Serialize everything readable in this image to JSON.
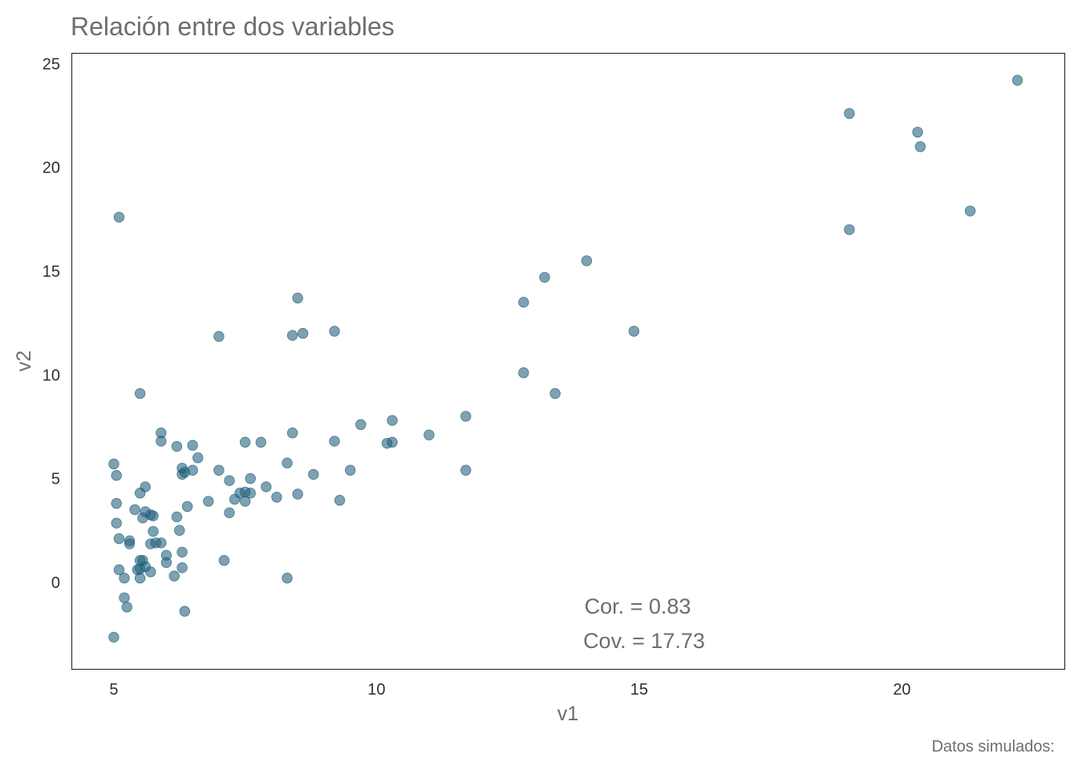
{
  "chart_data": {
    "type": "scatter",
    "title": "Relación entre dos variables",
    "xlabel": "v1",
    "ylabel": "v2",
    "caption": "Datos simulados:",
    "xlim": [
      4.2,
      23.1
    ],
    "ylim": [
      -4.2,
      25.5
    ],
    "xticks": [
      5,
      10,
      15,
      20
    ],
    "yticks": [
      0,
      5,
      10,
      15,
      20,
      25
    ],
    "grid": false,
    "point_color": "#1f5f7a",
    "annotations": {
      "cor": "Cor. =  0.83",
      "cov": "Cov. =  17.73"
    },
    "points": [
      {
        "x": 22.2,
        "y": 24.2
      },
      {
        "x": 19.0,
        "y": 22.6
      },
      {
        "x": 20.3,
        "y": 21.7
      },
      {
        "x": 20.35,
        "y": 21.0
      },
      {
        "x": 21.3,
        "y": 17.9
      },
      {
        "x": 19.0,
        "y": 17.0
      },
      {
        "x": 5.1,
        "y": 17.6
      },
      {
        "x": 14.0,
        "y": 15.5
      },
      {
        "x": 13.2,
        "y": 14.7
      },
      {
        "x": 12.8,
        "y": 13.5
      },
      {
        "x": 8.5,
        "y": 13.7
      },
      {
        "x": 14.9,
        "y": 12.1
      },
      {
        "x": 9.2,
        "y": 12.1
      },
      {
        "x": 8.6,
        "y": 12.0
      },
      {
        "x": 8.4,
        "y": 11.9
      },
      {
        "x": 7.0,
        "y": 11.85
      },
      {
        "x": 12.8,
        "y": 10.1
      },
      {
        "x": 13.4,
        "y": 9.1
      },
      {
        "x": 5.5,
        "y": 9.1
      },
      {
        "x": 11.7,
        "y": 8.0
      },
      {
        "x": 10.3,
        "y": 7.8
      },
      {
        "x": 9.7,
        "y": 7.6
      },
      {
        "x": 5.9,
        "y": 7.2
      },
      {
        "x": 8.4,
        "y": 7.2
      },
      {
        "x": 11.0,
        "y": 7.1
      },
      {
        "x": 5.9,
        "y": 6.8
      },
      {
        "x": 7.5,
        "y": 6.75
      },
      {
        "x": 7.8,
        "y": 6.75
      },
      {
        "x": 9.2,
        "y": 6.8
      },
      {
        "x": 10.2,
        "y": 6.7
      },
      {
        "x": 10.3,
        "y": 6.75
      },
      {
        "x": 6.2,
        "y": 6.55
      },
      {
        "x": 6.5,
        "y": 6.6
      },
      {
        "x": 6.6,
        "y": 6.0
      },
      {
        "x": 5.0,
        "y": 5.7
      },
      {
        "x": 8.3,
        "y": 5.75
      },
      {
        "x": 6.3,
        "y": 5.5
      },
      {
        "x": 6.3,
        "y": 5.2
      },
      {
        "x": 6.35,
        "y": 5.3
      },
      {
        "x": 6.5,
        "y": 5.4
      },
      {
        "x": 7.0,
        "y": 5.4
      },
      {
        "x": 9.5,
        "y": 5.4
      },
      {
        "x": 11.7,
        "y": 5.4
      },
      {
        "x": 5.05,
        "y": 5.15
      },
      {
        "x": 8.8,
        "y": 5.2
      },
      {
        "x": 7.2,
        "y": 4.9
      },
      {
        "x": 7.6,
        "y": 5.0
      },
      {
        "x": 5.6,
        "y": 4.6
      },
      {
        "x": 7.9,
        "y": 4.6
      },
      {
        "x": 5.5,
        "y": 4.3
      },
      {
        "x": 7.4,
        "y": 4.3
      },
      {
        "x": 7.5,
        "y": 4.35
      },
      {
        "x": 7.6,
        "y": 4.3
      },
      {
        "x": 8.1,
        "y": 4.1
      },
      {
        "x": 8.5,
        "y": 4.25
      },
      {
        "x": 7.3,
        "y": 4.0
      },
      {
        "x": 6.8,
        "y": 3.9
      },
      {
        "x": 7.5,
        "y": 3.9
      },
      {
        "x": 9.3,
        "y": 3.95
      },
      {
        "x": 5.05,
        "y": 3.8
      },
      {
        "x": 6.4,
        "y": 3.65
      },
      {
        "x": 5.4,
        "y": 3.5
      },
      {
        "x": 5.6,
        "y": 3.4
      },
      {
        "x": 7.2,
        "y": 3.35
      },
      {
        "x": 5.7,
        "y": 3.25
      },
      {
        "x": 5.75,
        "y": 3.2
      },
      {
        "x": 5.55,
        "y": 3.1
      },
      {
        "x": 6.2,
        "y": 3.15
      },
      {
        "x": 5.05,
        "y": 2.85
      },
      {
        "x": 5.75,
        "y": 2.45
      },
      {
        "x": 6.25,
        "y": 2.5
      },
      {
        "x": 5.1,
        "y": 2.1
      },
      {
        "x": 5.3,
        "y": 2.0
      },
      {
        "x": 5.3,
        "y": 1.85
      },
      {
        "x": 5.7,
        "y": 1.85
      },
      {
        "x": 5.8,
        "y": 1.9
      },
      {
        "x": 5.9,
        "y": 1.9
      },
      {
        "x": 6.3,
        "y": 1.45
      },
      {
        "x": 6.0,
        "y": 1.3
      },
      {
        "x": 5.5,
        "y": 1.05
      },
      {
        "x": 5.55,
        "y": 1.05
      },
      {
        "x": 6.0,
        "y": 0.95
      },
      {
        "x": 7.1,
        "y": 1.05
      },
      {
        "x": 5.6,
        "y": 0.75
      },
      {
        "x": 5.45,
        "y": 0.6
      },
      {
        "x": 5.5,
        "y": 0.65
      },
      {
        "x": 5.1,
        "y": 0.6
      },
      {
        "x": 5.7,
        "y": 0.5
      },
      {
        "x": 6.3,
        "y": 0.7
      },
      {
        "x": 5.2,
        "y": 0.2
      },
      {
        "x": 5.5,
        "y": 0.2
      },
      {
        "x": 6.15,
        "y": 0.3
      },
      {
        "x": 8.3,
        "y": 0.2
      },
      {
        "x": 5.2,
        "y": -0.75
      },
      {
        "x": 5.25,
        "y": -1.2
      },
      {
        "x": 6.35,
        "y": -1.4
      },
      {
        "x": 5.0,
        "y": -2.65
      }
    ]
  }
}
